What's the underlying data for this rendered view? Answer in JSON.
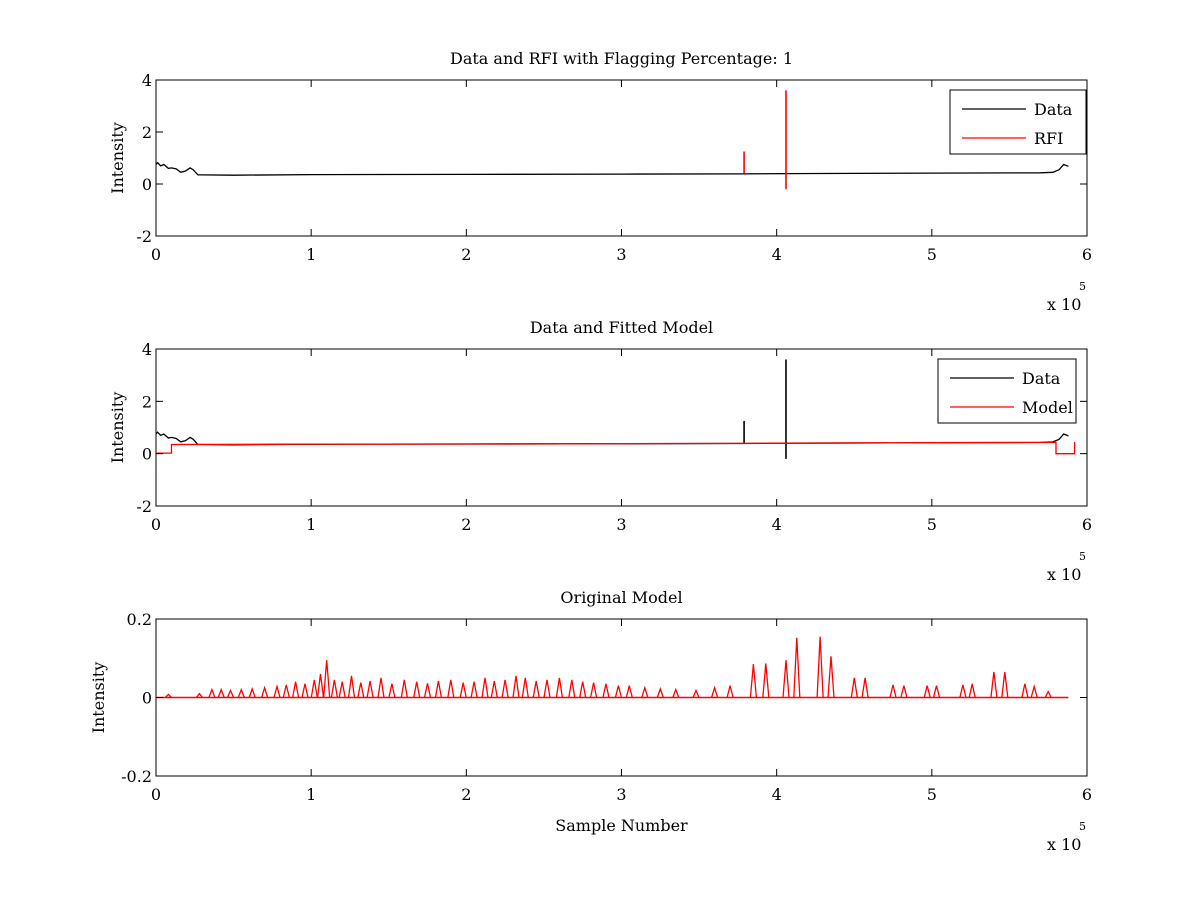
{
  "figure": {
    "background": "#ffffff"
  },
  "chart_data": [
    {
      "type": "line",
      "title": "Data and RFI with Flagging Percentage: 1",
      "xlabel": "",
      "ylabel": "Intensity",
      "xlim": [
        0,
        6
      ],
      "ylim": [
        -2,
        4
      ],
      "xticks": [
        "0",
        "1",
        "2",
        "3",
        "4",
        "5",
        "6"
      ],
      "yticks": [
        "-2",
        "0",
        "2",
        "4"
      ],
      "x_multiplier": {
        "base": "x 10",
        "exponent": "5"
      },
      "legend": {
        "position": "top-right",
        "entries": [
          {
            "label": "Data",
            "color": "#000000"
          },
          {
            "label": "RFI",
            "color": "#ff0000"
          }
        ]
      },
      "series": [
        {
          "name": "Data",
          "color": "#000000",
          "x": [
            0,
            0.01,
            0.03,
            0.05,
            0.08,
            0.1,
            0.13,
            0.16,
            0.19,
            0.22,
            0.24,
            0.27,
            0.3,
            0.5,
            1.0,
            2.0,
            3.0,
            3.78,
            4.06,
            5.0,
            5.7,
            5.78,
            5.82,
            5.85,
            5.88
          ],
          "y": [
            0.75,
            0.82,
            0.7,
            0.75,
            0.6,
            0.62,
            0.58,
            0.45,
            0.5,
            0.62,
            0.55,
            0.35,
            0.35,
            0.34,
            0.36,
            0.37,
            0.38,
            0.39,
            0.4,
            0.42,
            0.43,
            0.45,
            0.55,
            0.75,
            0.68
          ]
        },
        {
          "name": "RFI",
          "color": "#ff0000",
          "spikes": [
            {
              "x": 3.79,
              "ymin": 0.4,
              "ymax": 1.25
            },
            {
              "x": 4.06,
              "ymin": -0.2,
              "ymax": 3.6
            }
          ]
        }
      ]
    },
    {
      "type": "line",
      "title": "Data and Fitted Model",
      "xlabel": "",
      "ylabel": "Intensity",
      "xlim": [
        0,
        6
      ],
      "ylim": [
        -2,
        4
      ],
      "xticks": [
        "0",
        "1",
        "2",
        "3",
        "4",
        "5",
        "6"
      ],
      "yticks": [
        "-2",
        "0",
        "2",
        "4"
      ],
      "x_multiplier": {
        "base": "x 10",
        "exponent": "5"
      },
      "legend": {
        "position": "top-right",
        "entries": [
          {
            "label": "Data",
            "color": "#000000"
          },
          {
            "label": "Model",
            "color": "#ff0000"
          }
        ]
      },
      "series": [
        {
          "name": "Data",
          "color": "#000000",
          "x": [
            0,
            0.01,
            0.03,
            0.05,
            0.08,
            0.1,
            0.13,
            0.16,
            0.19,
            0.22,
            0.24,
            0.27,
            0.3,
            0.5,
            1.0,
            2.0,
            3.0,
            3.78,
            4.06,
            5.0,
            5.7,
            5.78,
            5.82,
            5.85,
            5.88
          ],
          "y": [
            0.75,
            0.82,
            0.7,
            0.75,
            0.6,
            0.62,
            0.58,
            0.45,
            0.5,
            0.62,
            0.55,
            0.35,
            0.35,
            0.34,
            0.36,
            0.37,
            0.38,
            0.39,
            0.4,
            0.42,
            0.43,
            0.45,
            0.55,
            0.75,
            0.68
          ],
          "spikes": [
            {
              "x": 3.79,
              "ymin": 0.4,
              "ymax": 1.25
            },
            {
              "x": 4.06,
              "ymin": -0.2,
              "ymax": 3.6
            }
          ]
        },
        {
          "name": "Model",
          "color": "#ff0000",
          "x": [
            0,
            0.1,
            0.1,
            1.0,
            2.0,
            3.0,
            4.0,
            5.0,
            5.8,
            5.8,
            5.92,
            5.92
          ],
          "y": [
            0.02,
            0.02,
            0.35,
            0.36,
            0.37,
            0.38,
            0.4,
            0.42,
            0.43,
            0.0,
            0.0,
            0.45
          ]
        }
      ]
    },
    {
      "type": "line",
      "title": "Original Model",
      "xlabel": "Sample Number",
      "ylabel": "Intensity",
      "xlim": [
        0,
        6
      ],
      "ylim": [
        -0.2,
        0.2
      ],
      "xticks": [
        "0",
        "1",
        "2",
        "3",
        "4",
        "5",
        "6"
      ],
      "yticks": [
        "-0.2",
        "0",
        "0.2"
      ],
      "x_multiplier": {
        "base": "x 10",
        "exponent": "5"
      },
      "legend": null,
      "series": [
        {
          "color": "#ff0000",
          "baseline": 0,
          "x_extent": [
            0,
            5.88
          ],
          "peaks": [
            [
              0.08,
              0.008
            ],
            [
              0.28,
              0.01
            ],
            [
              0.36,
              0.02
            ],
            [
              0.42,
              0.02
            ],
            [
              0.48,
              0.018
            ],
            [
              0.55,
              0.02
            ],
            [
              0.62,
              0.022
            ],
            [
              0.7,
              0.025
            ],
            [
              0.78,
              0.028
            ],
            [
              0.84,
              0.032
            ],
            [
              0.9,
              0.04
            ],
            [
              0.96,
              0.035
            ],
            [
              1.02,
              0.045
            ],
            [
              1.06,
              0.06
            ],
            [
              1.1,
              0.095
            ],
            [
              1.15,
              0.045
            ],
            [
              1.2,
              0.04
            ],
            [
              1.26,
              0.055
            ],
            [
              1.32,
              0.038
            ],
            [
              1.38,
              0.042
            ],
            [
              1.45,
              0.05
            ],
            [
              1.52,
              0.035
            ],
            [
              1.6,
              0.045
            ],
            [
              1.68,
              0.04
            ],
            [
              1.75,
              0.036
            ],
            [
              1.82,
              0.042
            ],
            [
              1.9,
              0.045
            ],
            [
              1.98,
              0.038
            ],
            [
              2.05,
              0.04
            ],
            [
              2.12,
              0.05
            ],
            [
              2.18,
              0.042
            ],
            [
              2.25,
              0.045
            ],
            [
              2.32,
              0.055
            ],
            [
              2.38,
              0.05
            ],
            [
              2.45,
              0.042
            ],
            [
              2.52,
              0.045
            ],
            [
              2.6,
              0.05
            ],
            [
              2.68,
              0.045
            ],
            [
              2.75,
              0.04
            ],
            [
              2.82,
              0.038
            ],
            [
              2.9,
              0.035
            ],
            [
              2.98,
              0.03
            ],
            [
              3.05,
              0.03
            ],
            [
              3.15,
              0.025
            ],
            [
              3.25,
              0.022
            ],
            [
              3.35,
              0.02
            ],
            [
              3.48,
              0.018
            ],
            [
              3.6,
              0.025
            ],
            [
              3.7,
              0.03
            ],
            [
              3.85,
              0.085
            ],
            [
              3.93,
              0.087
            ],
            [
              4.06,
              0.095
            ],
            [
              4.13,
              0.152
            ],
            [
              4.28,
              0.155
            ],
            [
              4.35,
              0.105
            ],
            [
              4.5,
              0.05
            ],
            [
              4.57,
              0.05
            ],
            [
              4.75,
              0.032
            ],
            [
              4.82,
              0.03
            ],
            [
              4.97,
              0.03
            ],
            [
              5.03,
              0.03
            ],
            [
              5.2,
              0.032
            ],
            [
              5.26,
              0.035
            ],
            [
              5.4,
              0.065
            ],
            [
              5.47,
              0.065
            ],
            [
              5.6,
              0.035
            ],
            [
              5.66,
              0.028
            ],
            [
              5.75,
              0.015
            ]
          ]
        }
      ]
    }
  ]
}
